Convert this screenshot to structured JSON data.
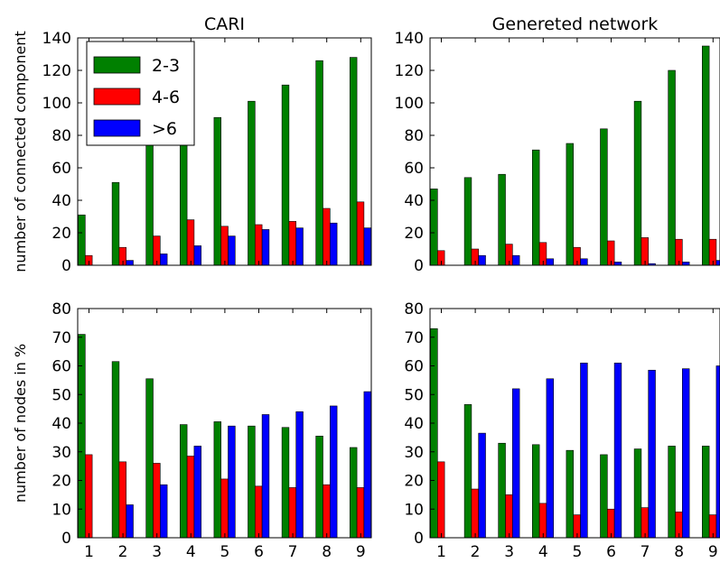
{
  "chart_data": [
    {
      "type": "bar",
      "title": "CARI",
      "xlabel": "",
      "ylabel": "number of connected component",
      "categories": [
        "1",
        "2",
        "3",
        "4",
        "5",
        "6",
        "7",
        "8",
        "9"
      ],
      "ylim": [
        0,
        140
      ],
      "yticks": [
        0,
        20,
        40,
        60,
        80,
        100,
        120,
        140
      ],
      "legend": {
        "position": "top-left"
      },
      "series": [
        {
          "name": "2-3",
          "color": "#008000",
          "values": [
            31,
            51,
            79,
            79,
            91,
            101,
            111,
            126,
            128
          ]
        },
        {
          "name": "4-6",
          "color": "#ff0000",
          "values": [
            6,
            11,
            18,
            28,
            24,
            25,
            27,
            35,
            39
          ]
        },
        {
          "name": ">6",
          "color": "#0000ff",
          "values": [
            0,
            3,
            7,
            12,
            18,
            22,
            23,
            26,
            23
          ]
        }
      ]
    },
    {
      "type": "bar",
      "title": "Genereted network",
      "xlabel": "",
      "ylabel": "",
      "categories": [
        "1",
        "2",
        "3",
        "4",
        "5",
        "6",
        "7",
        "8",
        "9"
      ],
      "ylim": [
        0,
        140
      ],
      "yticks": [
        0,
        20,
        40,
        60,
        80,
        100,
        120,
        140
      ],
      "series": [
        {
          "name": "2-3",
          "color": "#008000",
          "values": [
            47,
            54,
            56,
            71,
            75,
            84,
            101,
            120,
            135
          ]
        },
        {
          "name": "4-6",
          "color": "#ff0000",
          "values": [
            9,
            10,
            13,
            14,
            11,
            15,
            17,
            16,
            16
          ]
        },
        {
          "name": ">6",
          "color": "#0000ff",
          "values": [
            0,
            6,
            6,
            4,
            4,
            2,
            1,
            2,
            3
          ]
        }
      ]
    },
    {
      "type": "bar",
      "title": "",
      "xlabel": "",
      "ylabel": "number of nodes in %",
      "categories": [
        "1",
        "2",
        "3",
        "4",
        "5",
        "6",
        "7",
        "8",
        "9"
      ],
      "xticks": [
        "1",
        "2",
        "3",
        "4",
        "5",
        "6",
        "7",
        "8",
        "9"
      ],
      "ylim": [
        0,
        80
      ],
      "yticks": [
        0,
        10,
        20,
        30,
        40,
        50,
        60,
        70,
        80
      ],
      "series": [
        {
          "name": "2-3",
          "color": "#008000",
          "values": [
            71,
            61.5,
            55.5,
            39.5,
            40.5,
            39,
            38.5,
            35.5,
            31.5
          ]
        },
        {
          "name": "4-6",
          "color": "#ff0000",
          "values": [
            29,
            26.5,
            26,
            28.5,
            20.5,
            18,
            17.5,
            18.5,
            17.5
          ]
        },
        {
          "name": ">6",
          "color": "#0000ff",
          "values": [
            0,
            11.5,
            18.5,
            32,
            39,
            43,
            44,
            46,
            51
          ]
        }
      ]
    },
    {
      "type": "bar",
      "title": "",
      "xlabel": "",
      "ylabel": "",
      "categories": [
        "1",
        "2",
        "3",
        "4",
        "5",
        "6",
        "7",
        "8",
        "9"
      ],
      "xticks": [
        "1",
        "2",
        "3",
        "4",
        "5",
        "6",
        "7",
        "8",
        "9"
      ],
      "ylim": [
        0,
        80
      ],
      "yticks": [
        0,
        10,
        20,
        30,
        40,
        50,
        60,
        70,
        80
      ],
      "series": [
        {
          "name": "2-3",
          "color": "#008000",
          "values": [
            73,
            46.5,
            33,
            32.5,
            30.5,
            29,
            31,
            32,
            32
          ]
        },
        {
          "name": "4-6",
          "color": "#ff0000",
          "values": [
            26.5,
            17,
            15,
            12,
            8,
            10,
            10.5,
            9,
            8
          ]
        },
        {
          "name": ">6",
          "color": "#0000ff",
          "values": [
            0,
            36.5,
            52,
            55.5,
            61,
            61,
            58.5,
            59,
            60
          ]
        }
      ]
    }
  ]
}
